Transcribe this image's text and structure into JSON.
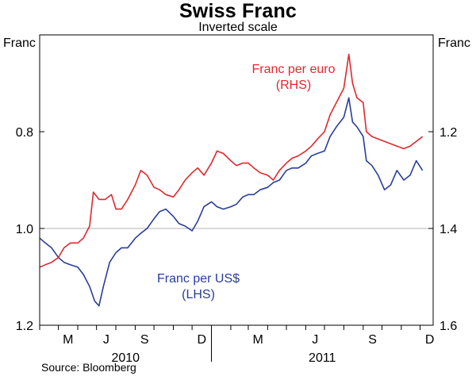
{
  "header": {
    "title": "Swiss Franc",
    "subtitle": "Inverted scale"
  },
  "axes": {
    "left_unit": "Franc",
    "right_unit": "Franc"
  },
  "source": "Source: Bloomberg",
  "chart_data": {
    "type": "line",
    "title": "Swiss Franc",
    "subtitle": "Inverted scale",
    "x_axis": {
      "month_labels": [
        "M",
        "J",
        "S",
        "D",
        "M",
        "J",
        "S",
        "D"
      ],
      "month_dates": [
        "2010-05",
        "2010-07",
        "2010-09",
        "2010-12",
        "2011-03",
        "2011-06",
        "2011-09",
        "2011-12"
      ],
      "year_labels": [
        "2010",
        "2011"
      ],
      "range": [
        "2010-04",
        "2011-12"
      ]
    },
    "left_axis": {
      "unit": "Franc",
      "ticks": [
        "0.8",
        "1.0",
        "1.2"
      ],
      "range": [
        0.6,
        1.2
      ],
      "inverted": true
    },
    "right_axis": {
      "unit": "Franc",
      "ticks": [
        "1.2",
        "1.4",
        "1.6"
      ],
      "range": [
        1.0,
        1.6
      ],
      "inverted": true
    },
    "grid": "horizontal",
    "annotations": [
      {
        "series": "Franc per euro",
        "text": [
          "Franc per euro",
          "(RHS)"
        ]
      },
      {
        "series": "Franc per US$",
        "text": [
          "Franc per US$",
          "(LHS)"
        ]
      }
    ],
    "series": [
      {
        "name": "Franc per US$",
        "axis": "left",
        "color": "#2a3d9a",
        "points": [
          [
            "2010-04-01",
            1.02
          ],
          [
            "2010-04-10",
            1.03
          ],
          [
            "2010-04-20",
            1.04
          ],
          [
            "2010-05-01",
            1.06
          ],
          [
            "2010-05-10",
            1.07
          ],
          [
            "2010-05-20",
            1.075
          ],
          [
            "2010-06-01",
            1.08
          ],
          [
            "2010-06-10",
            1.095
          ],
          [
            "2010-06-20",
            1.12
          ],
          [
            "2010-06-28",
            1.15
          ],
          [
            "2010-07-05",
            1.16
          ],
          [
            "2010-07-12",
            1.12
          ],
          [
            "2010-07-22",
            1.07
          ],
          [
            "2010-08-01",
            1.05
          ],
          [
            "2010-08-10",
            1.04
          ],
          [
            "2010-08-20",
            1.04
          ],
          [
            "2010-09-01",
            1.02
          ],
          [
            "2010-09-10",
            1.01
          ],
          [
            "2010-09-20",
            1.0
          ],
          [
            "2010-10-01",
            0.98
          ],
          [
            "2010-10-10",
            0.965
          ],
          [
            "2010-10-20",
            0.96
          ],
          [
            "2010-11-01",
            0.975
          ],
          [
            "2010-11-10",
            0.99
          ],
          [
            "2010-11-20",
            0.995
          ],
          [
            "2010-12-01",
            1.005
          ],
          [
            "2010-12-10",
            0.985
          ],
          [
            "2010-12-20",
            0.955
          ],
          [
            "2011-01-01",
            0.945
          ],
          [
            "2011-01-10",
            0.955
          ],
          [
            "2011-01-20",
            0.96
          ],
          [
            "2011-02-01",
            0.955
          ],
          [
            "2011-02-10",
            0.95
          ],
          [
            "2011-02-20",
            0.935
          ],
          [
            "2011-03-01",
            0.93
          ],
          [
            "2011-03-10",
            0.93
          ],
          [
            "2011-03-20",
            0.92
          ],
          [
            "2011-04-01",
            0.915
          ],
          [
            "2011-04-10",
            0.905
          ],
          [
            "2011-04-20",
            0.9
          ],
          [
            "2011-05-01",
            0.88
          ],
          [
            "2011-05-10",
            0.875
          ],
          [
            "2011-05-20",
            0.875
          ],
          [
            "2011-06-01",
            0.865
          ],
          [
            "2011-06-10",
            0.85
          ],
          [
            "2011-06-20",
            0.845
          ],
          [
            "2011-07-01",
            0.84
          ],
          [
            "2011-07-10",
            0.81
          ],
          [
            "2011-07-20",
            0.79
          ],
          [
            "2011-08-01",
            0.77
          ],
          [
            "2011-08-09",
            0.73
          ],
          [
            "2011-08-15",
            0.78
          ],
          [
            "2011-08-22",
            0.79
          ],
          [
            "2011-09-01",
            0.81
          ],
          [
            "2011-09-06",
            0.86
          ],
          [
            "2011-09-15",
            0.87
          ],
          [
            "2011-09-25",
            0.89
          ],
          [
            "2011-10-05",
            0.92
          ],
          [
            "2011-10-15",
            0.91
          ],
          [
            "2011-10-25",
            0.88
          ],
          [
            "2011-11-05",
            0.9
          ],
          [
            "2011-11-15",
            0.89
          ],
          [
            "2011-11-25",
            0.86
          ],
          [
            "2011-12-05",
            0.88
          ]
        ]
      },
      {
        "name": "Franc per euro",
        "axis": "right",
        "color": "#e0282e",
        "points": [
          [
            "2010-04-01",
            1.48
          ],
          [
            "2010-04-10",
            1.475
          ],
          [
            "2010-04-20",
            1.47
          ],
          [
            "2010-05-01",
            1.46
          ],
          [
            "2010-05-10",
            1.44
          ],
          [
            "2010-05-20",
            1.43
          ],
          [
            "2010-06-01",
            1.43
          ],
          [
            "2010-06-10",
            1.42
          ],
          [
            "2010-06-20",
            1.395
          ],
          [
            "2010-06-26",
            1.325
          ],
          [
            "2010-07-05",
            1.34
          ],
          [
            "2010-07-15",
            1.34
          ],
          [
            "2010-07-25",
            1.33
          ],
          [
            "2010-08-01",
            1.36
          ],
          [
            "2010-08-10",
            1.36
          ],
          [
            "2010-08-20",
            1.34
          ],
          [
            "2010-09-01",
            1.31
          ],
          [
            "2010-09-10",
            1.28
          ],
          [
            "2010-09-20",
            1.29
          ],
          [
            "2010-10-01",
            1.315
          ],
          [
            "2010-10-10",
            1.32
          ],
          [
            "2010-10-20",
            1.33
          ],
          [
            "2010-11-01",
            1.335
          ],
          [
            "2010-11-10",
            1.32
          ],
          [
            "2010-11-20",
            1.3
          ],
          [
            "2010-12-01",
            1.285
          ],
          [
            "2010-12-10",
            1.275
          ],
          [
            "2010-12-20",
            1.29
          ],
          [
            "2011-01-01",
            1.265
          ],
          [
            "2011-01-10",
            1.24
          ],
          [
            "2011-01-20",
            1.245
          ],
          [
            "2011-02-01",
            1.26
          ],
          [
            "2011-02-10",
            1.27
          ],
          [
            "2011-02-20",
            1.265
          ],
          [
            "2011-03-01",
            1.265
          ],
          [
            "2011-03-10",
            1.275
          ],
          [
            "2011-03-20",
            1.285
          ],
          [
            "2011-04-01",
            1.29
          ],
          [
            "2011-04-10",
            1.3
          ],
          [
            "2011-04-20",
            1.28
          ],
          [
            "2011-05-01",
            1.265
          ],
          [
            "2011-05-10",
            1.255
          ],
          [
            "2011-05-20",
            1.25
          ],
          [
            "2011-06-01",
            1.24
          ],
          [
            "2011-06-10",
            1.23
          ],
          [
            "2011-06-20",
            1.215
          ],
          [
            "2011-07-01",
            1.2
          ],
          [
            "2011-07-10",
            1.165
          ],
          [
            "2011-07-20",
            1.14
          ],
          [
            "2011-08-01",
            1.11
          ],
          [
            "2011-08-09",
            1.04
          ],
          [
            "2011-08-15",
            1.1
          ],
          [
            "2011-08-22",
            1.13
          ],
          [
            "2011-09-01",
            1.14
          ],
          [
            "2011-09-06",
            1.2
          ],
          [
            "2011-09-15",
            1.21
          ],
          [
            "2011-09-25",
            1.215
          ],
          [
            "2011-10-05",
            1.22
          ],
          [
            "2011-10-15",
            1.225
          ],
          [
            "2011-10-25",
            1.23
          ],
          [
            "2011-11-05",
            1.235
          ],
          [
            "2011-11-15",
            1.23
          ],
          [
            "2011-11-25",
            1.22
          ],
          [
            "2011-12-05",
            1.21
          ]
        ]
      }
    ]
  }
}
